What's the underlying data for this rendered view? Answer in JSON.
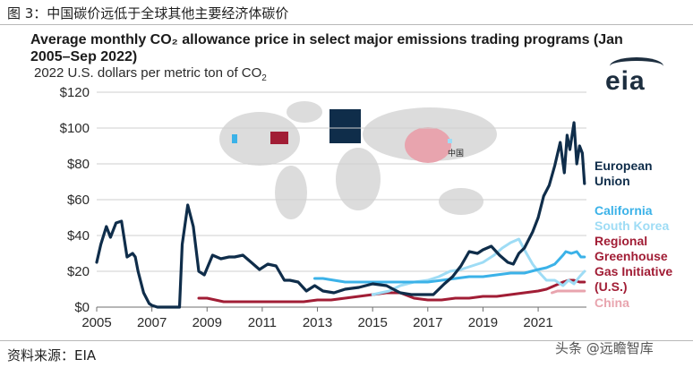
{
  "figure": {
    "caption": "图 3：中国碳价远低于全球其他主要经济体碳价",
    "source": "资料来源：EIA",
    "watermark": "头条 @远瞻智库",
    "logo_text": "eia"
  },
  "chart_data": {
    "type": "line",
    "title": "Average monthly CO₂ allowance price in select major emissions trading programs (Jan 2005–Sep 2022)",
    "title_line1": "Average monthly CO₂ allowance price in select major emissions trading programs (Jan",
    "title_line2": "2005–Sep 2022)",
    "subtitle": "2022 U.S. dollars per metric ton of CO₂",
    "subtitle_prefix": "2022 U.S. dollars per metric ton of CO",
    "subtitle_sub": "2",
    "xlabel": "",
    "ylabel": "",
    "xlim": [
      2005.0,
      2022.75
    ],
    "ylim": [
      0,
      120
    ],
    "y_ticks": [
      0,
      20,
      40,
      60,
      80,
      100,
      120
    ],
    "y_tick_labels": [
      "$0",
      "$20",
      "$40",
      "$60",
      "$80",
      "$100",
      "$120"
    ],
    "x_ticks": [
      2005,
      2007,
      2009,
      2011,
      2013,
      2015,
      2017,
      2019,
      2021
    ],
    "x_tick_labels": [
      "2005",
      "2007",
      "2009",
      "2011",
      "2013",
      "2015",
      "2017",
      "2019",
      "2021"
    ],
    "grid": "horizontal",
    "map_label": "中国",
    "series": [
      {
        "name": "European Union",
        "label_lines": [
          "European",
          "Union"
        ],
        "color": "#0f2d4a",
        "x": [
          2005.0,
          2005.15,
          2005.35,
          2005.5,
          2005.7,
          2005.9,
          2006.1,
          2006.3,
          2006.4,
          2006.5,
          2006.7,
          2006.9,
          2007.0,
          2007.2,
          2007.5,
          2007.8,
          2008.0,
          2008.1,
          2008.3,
          2008.5,
          2008.7,
          2008.9,
          2009.2,
          2009.5,
          2009.8,
          2010.0,
          2010.3,
          2010.6,
          2010.9,
          2011.2,
          2011.5,
          2011.8,
          2012.0,
          2012.3,
          2012.6,
          2012.9,
          2013.2,
          2013.6,
          2014.0,
          2014.5,
          2015.0,
          2015.5,
          2016.0,
          2016.4,
          2016.8,
          2017.2,
          2017.6,
          2017.9,
          2018.2,
          2018.5,
          2018.8,
          2019.0,
          2019.3,
          2019.6,
          2019.9,
          2020.1,
          2020.3,
          2020.5,
          2020.8,
          2021.0,
          2021.2,
          2021.4,
          2021.6,
          2021.8,
          2021.95,
          2022.05,
          2022.15,
          2022.3,
          2022.4,
          2022.5,
          2022.6,
          2022.68
        ],
        "values": [
          25,
          35,
          45,
          39,
          47,
          48,
          28,
          30,
          28,
          20,
          8,
          2,
          1,
          0,
          0,
          0,
          0,
          35,
          57,
          45,
          20,
          18,
          29,
          27,
          28,
          28,
          29,
          25,
          21,
          24,
          23,
          15,
          15,
          14,
          9,
          12,
          9,
          8,
          10,
          11,
          13,
          12,
          8,
          7,
          7,
          7,
          13,
          17,
          23,
          31,
          30,
          32,
          34,
          29,
          25,
          24,
          30,
          33,
          42,
          50,
          62,
          68,
          79,
          92,
          75,
          96,
          88,
          103,
          80,
          90,
          86,
          69
        ]
      },
      {
        "name": "California",
        "label_lines": [
          "California"
        ],
        "color": "#3bb2e8",
        "x": [
          2012.9,
          2013.2,
          2013.6,
          2014.0,
          2014.5,
          2015.0,
          2015.5,
          2016.0,
          2016.5,
          2017.0,
          2017.5,
          2018.0,
          2018.5,
          2019.0,
          2019.5,
          2020.0,
          2020.5,
          2021.0,
          2021.3,
          2021.6,
          2021.9,
          2022.0,
          2022.2,
          2022.4,
          2022.55,
          2022.68
        ],
        "values": [
          16,
          16,
          15,
          14,
          14,
          14,
          14,
          14,
          14,
          14,
          15,
          16,
          17,
          17,
          18,
          19,
          19,
          21,
          22,
          24,
          29,
          31,
          30,
          31,
          28,
          28
        ]
      },
      {
        "name": "South Korea",
        "label_lines": [
          "South Korea"
        ],
        "color": "#9edcf5",
        "x": [
          2015.0,
          2015.3,
          2015.6,
          2016.0,
          2016.5,
          2017.0,
          2017.4,
          2017.8,
          2018.2,
          2018.6,
          2019.0,
          2019.4,
          2019.7,
          2020.0,
          2020.3,
          2020.5,
          2020.8,
          2021.0,
          2021.3,
          2021.6,
          2021.9,
          2022.1,
          2022.3,
          2022.5,
          2022.68
        ],
        "values": [
          7,
          8,
          9,
          12,
          14,
          15,
          17,
          20,
          21,
          23,
          25,
          29,
          33,
          36,
          38,
          32,
          24,
          20,
          15,
          15,
          12,
          15,
          13,
          17,
          20
        ]
      },
      {
        "name": "Regional Greenhouse Gas Initiative (U.S.)",
        "label_lines": [
          "Regional",
          "Greenhouse",
          "Gas Initiative",
          "(U.S.)"
        ],
        "color": "#a11d35",
        "x": [
          2008.7,
          2009.0,
          2009.3,
          2009.6,
          2010.0,
          2010.5,
          2011.0,
          2011.5,
          2012.0,
          2012.5,
          2013.0,
          2013.5,
          2014.0,
          2014.5,
          2015.0,
          2015.5,
          2016.0,
          2016.5,
          2017.0,
          2017.5,
          2018.0,
          2018.5,
          2019.0,
          2019.5,
          2020.0,
          2020.5,
          2021.0,
          2021.3,
          2021.6,
          2021.9,
          2022.1,
          2022.3,
          2022.5,
          2022.68
        ],
        "values": [
          5,
          5,
          4,
          3,
          3,
          3,
          3,
          3,
          3,
          3,
          4,
          4,
          5,
          6,
          7,
          8,
          8,
          5,
          4,
          4,
          5,
          5,
          6,
          6,
          7,
          8,
          9,
          10,
          12,
          14,
          15,
          15,
          14,
          14
        ]
      },
      {
        "name": "China",
        "label_lines": [
          "China"
        ],
        "color": "#e8a4ae",
        "x": [
          2021.5,
          2021.7,
          2021.9,
          2022.1,
          2022.3,
          2022.5,
          2022.68
        ],
        "values": [
          8,
          9,
          9,
          9,
          9,
          9,
          9
        ]
      }
    ]
  }
}
